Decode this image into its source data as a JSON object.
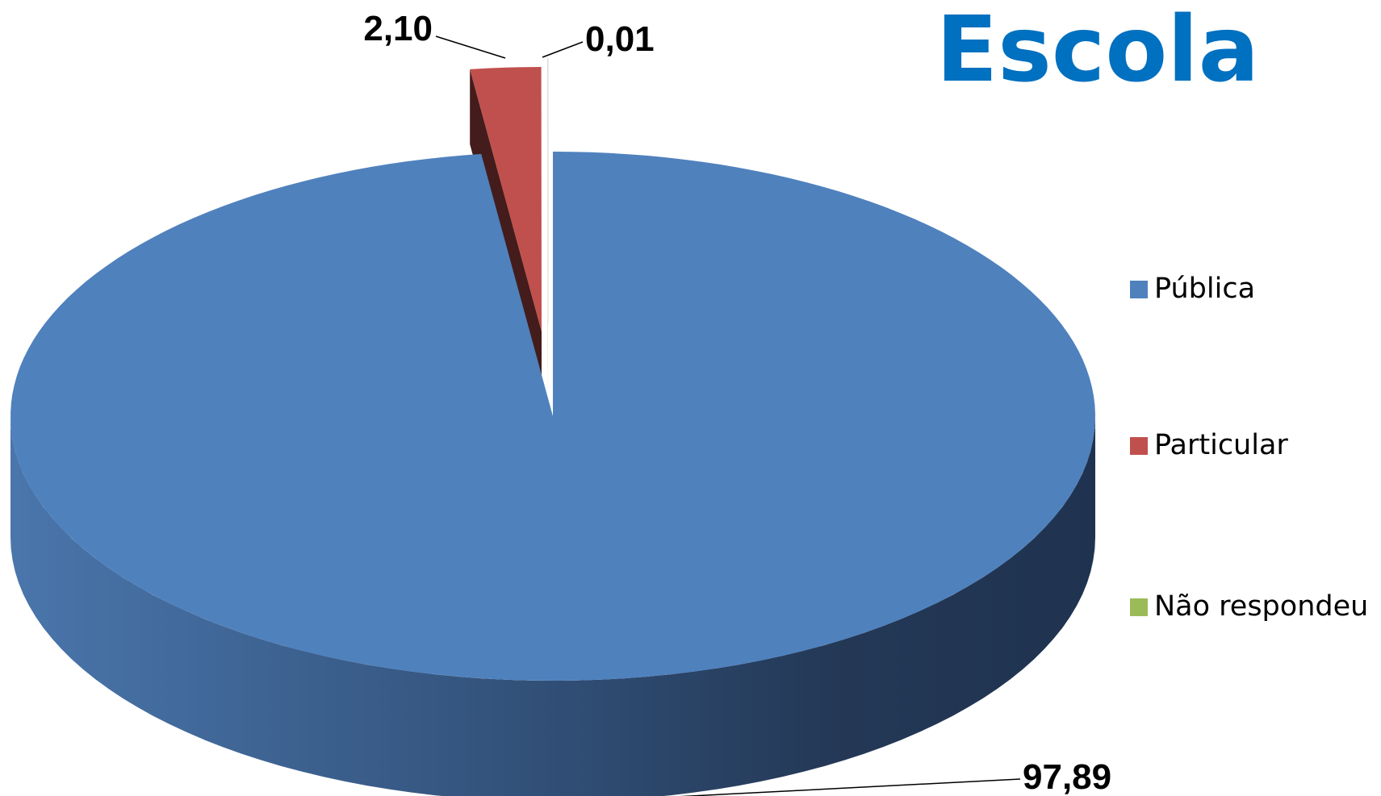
{
  "chart_data": {
    "type": "pie",
    "style": "3d-exploded",
    "title": "Escola",
    "title_color": "#0070C0",
    "categories": [
      "Pública",
      "Particular",
      "Não respondeu"
    ],
    "values": [
      97.89,
      2.1,
      0.01
    ],
    "value_labels": [
      "97,89",
      "2,10",
      "0,01"
    ],
    "colors": [
      "#4F81BD",
      "#C0504D",
      "#9BBB59"
    ],
    "legend_position": "right",
    "start_angle_deg": 0
  }
}
